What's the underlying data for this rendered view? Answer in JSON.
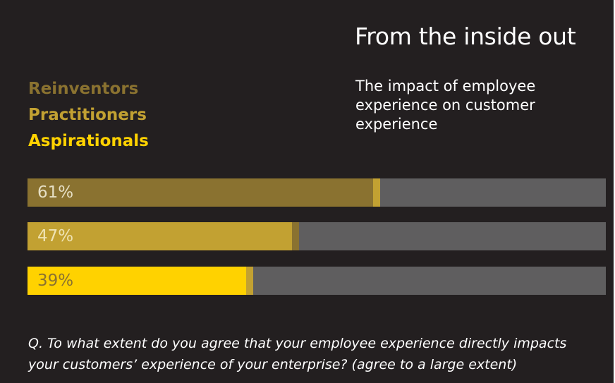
{
  "title": "From the inside out",
  "subtitle": "The impact of employee experience on customer experience",
  "legend": [
    {
      "label": "Reinventors",
      "color": "#8a7230"
    },
    {
      "label": "Practitioners",
      "color": "#c2a132"
    },
    {
      "label": "Aspirationals",
      "color": "#ffd200"
    }
  ],
  "question": "Q. To what extent do you agree that your employee experience directly impacts your customers’ experience of your enterprise? (agree to a large extent)",
  "chart_data": {
    "type": "bar",
    "orientation": "horizontal",
    "categories": [
      "Reinventors",
      "Practitioners",
      "Aspirationals"
    ],
    "values": [
      61,
      47,
      39
    ],
    "labels": [
      "61%",
      "47%",
      "39%"
    ],
    "value_unit": "%",
    "xlim": [
      0,
      100
    ],
    "colors": {
      "fills": [
        "#8a7230",
        "#c2a132",
        "#ffd200"
      ],
      "edges": [
        "#c2a132",
        "#8a7230",
        "#c2a132"
      ],
      "labels": [
        "#e6dfc5",
        "#efe3b4",
        "#8a7230"
      ],
      "track": "#5f5e5f",
      "background": "#231f20"
    }
  }
}
